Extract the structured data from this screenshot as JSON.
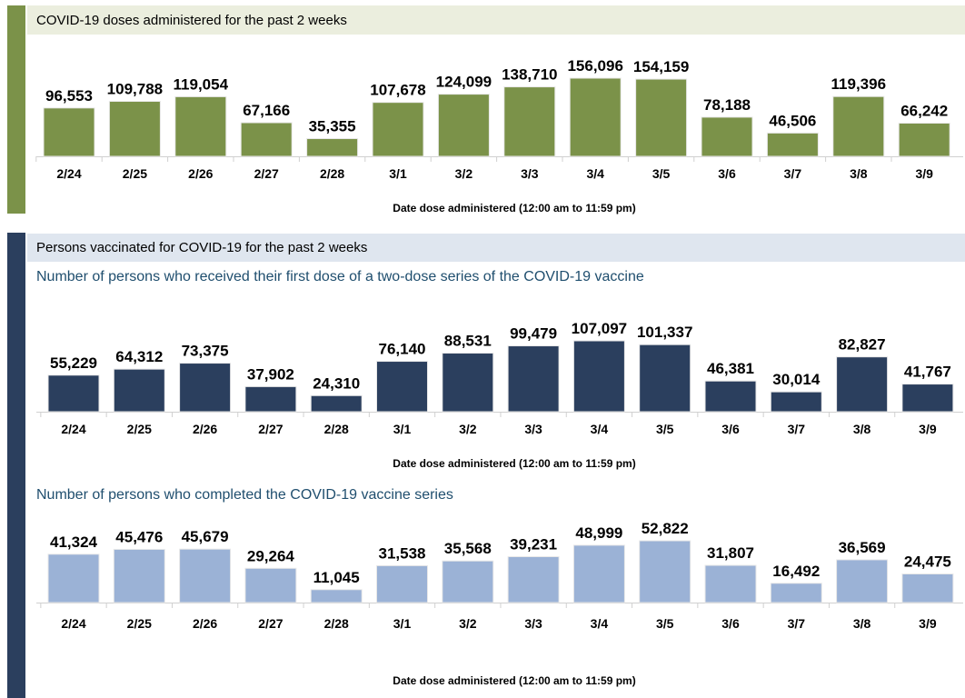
{
  "sections": [
    {
      "title": "COVID-19 doses administered for the past 2 weeks",
      "color": "#7b9249",
      "band_color": "#ebeede"
    },
    {
      "title": "Persons vaccinated for COVID-19 for the past 2 weeks",
      "color": "#2b3f5e",
      "band_color": "#dfe6ef"
    }
  ],
  "chart_data": [
    {
      "type": "bar",
      "title": "",
      "xlabel": "Date dose administered (12:00 am to 11:59 pm)",
      "categories": [
        "2/24",
        "2/25",
        "2/26",
        "2/27",
        "2/28",
        "3/1",
        "3/2",
        "3/3",
        "3/4",
        "3/5",
        "3/6",
        "3/7",
        "3/8",
        "3/9"
      ],
      "values": [
        96553,
        109788,
        119054,
        67166,
        35355,
        107678,
        124099,
        138710,
        156096,
        154159,
        78188,
        46506,
        119396,
        66242
      ],
      "labels": [
        "96,553",
        "109,788",
        "119,054",
        "67,166",
        "35,355",
        "107,678",
        "124,099",
        "138,710",
        "156,096",
        "154,159",
        "78,188",
        "46,506",
        "119,396",
        "66,242"
      ],
      "color": "#7b9249"
    },
    {
      "type": "bar",
      "title": "Number of persons who received their first dose of a two-dose series of the COVID-19 vaccine",
      "xlabel": "Date dose administered (12:00 am to 11:59 pm)",
      "categories": [
        "2/24",
        "2/25",
        "2/26",
        "2/27",
        "2/28",
        "3/1",
        "3/2",
        "3/3",
        "3/4",
        "3/5",
        "3/6",
        "3/7",
        "3/8",
        "3/9"
      ],
      "values": [
        55229,
        64312,
        73375,
        37902,
        24310,
        76140,
        88531,
        99479,
        107097,
        101337,
        46381,
        30014,
        82827,
        41767
      ],
      "labels": [
        "55,229",
        "64,312",
        "73,375",
        "37,902",
        "24,310",
        "76,140",
        "88,531",
        "99,479",
        "107,097",
        "101,337",
        "46,381",
        "30,014",
        "82,827",
        "41,767"
      ],
      "color": "#2b3f5e"
    },
    {
      "type": "bar",
      "title": "Number of persons who completed the COVID-19 vaccine series",
      "xlabel": "Date dose administered (12:00 am to 11:59 pm)",
      "categories": [
        "2/24",
        "2/25",
        "2/26",
        "2/27",
        "2/28",
        "3/1",
        "3/2",
        "3/3",
        "3/4",
        "3/5",
        "3/6",
        "3/7",
        "3/8",
        "3/9"
      ],
      "values": [
        41324,
        45476,
        45679,
        29264,
        11045,
        31538,
        35568,
        39231,
        48999,
        52822,
        31807,
        16492,
        36569,
        24475
      ],
      "labels": [
        "41,324",
        "45,476",
        "45,679",
        "29,264",
        "11,045",
        "31,538",
        "35,568",
        "39,231",
        "48,999",
        "52,822",
        "31,807",
        "16,492",
        "36,569",
        "24,475"
      ],
      "color": "#9bb2d6"
    }
  ]
}
